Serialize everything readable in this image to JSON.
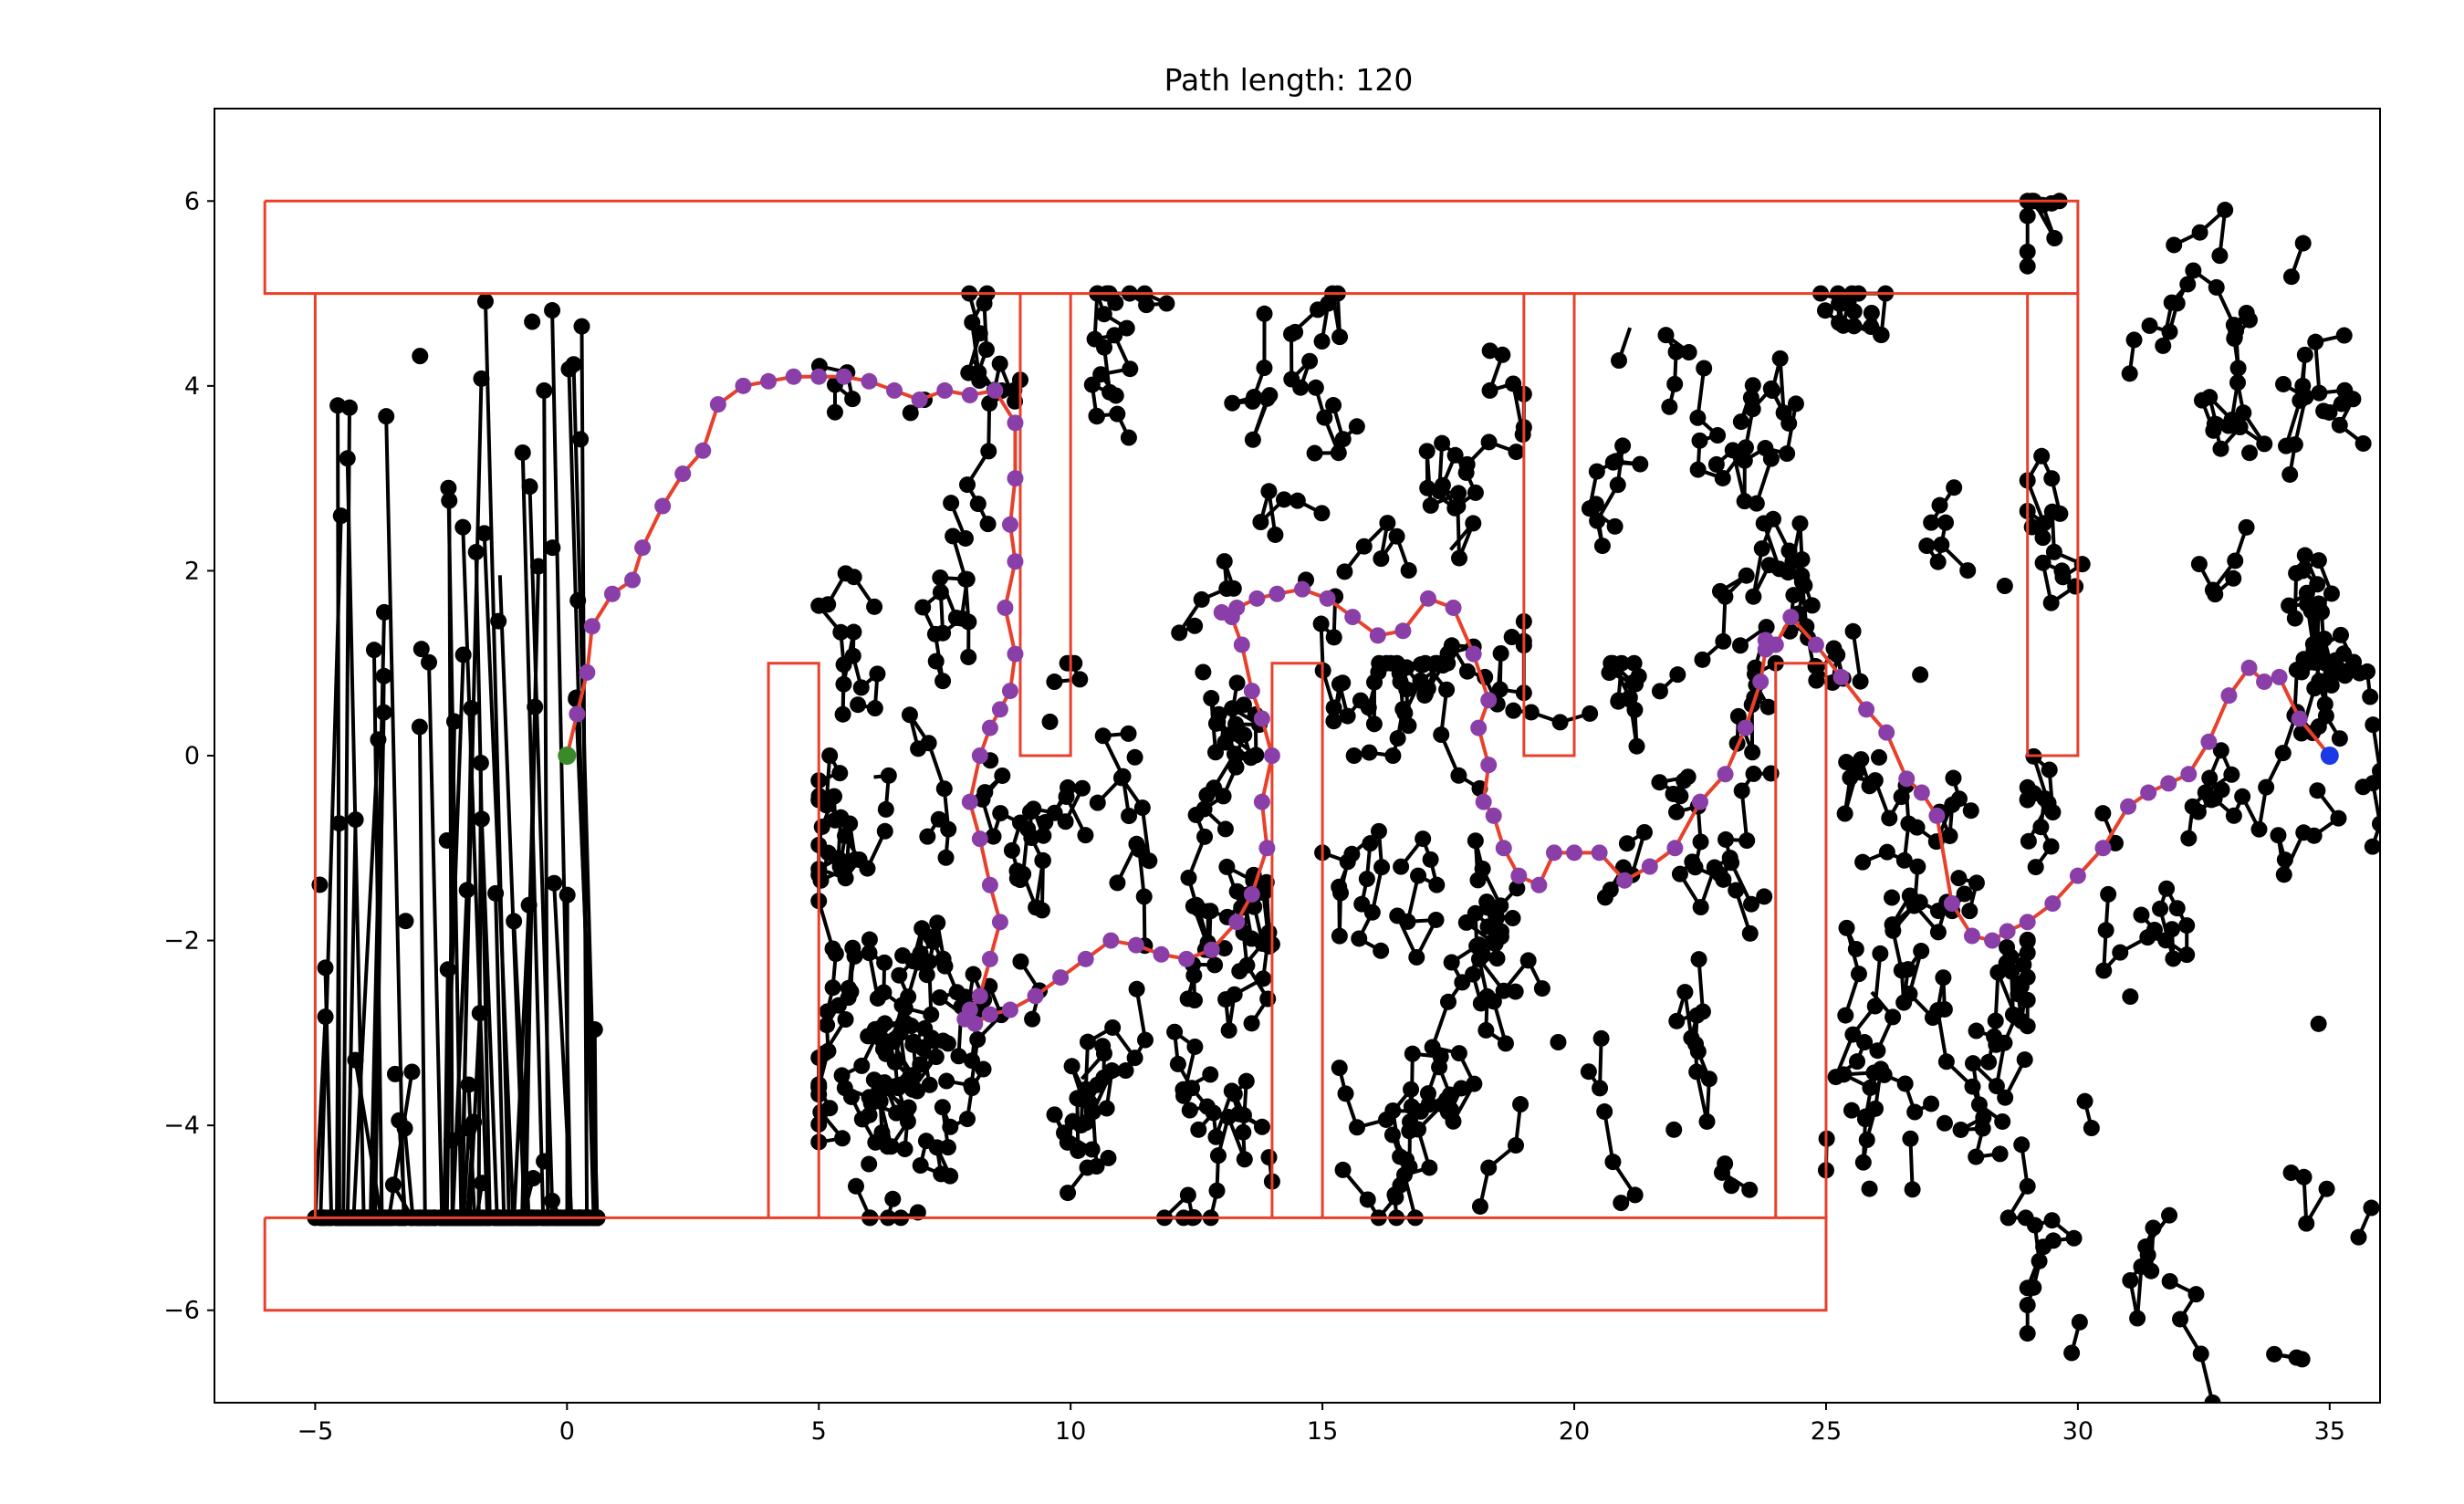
{
  "chart_data": {
    "type": "scatter",
    "title": "Path length: 120",
    "xlabel": "",
    "ylabel": "",
    "xlim": [
      -7,
      36
    ],
    "ylim": [
      -7,
      7
    ],
    "x_ticks": [
      -5,
      0,
      5,
      10,
      15,
      20,
      25,
      30,
      35
    ],
    "x_tick_labels": [
      "−5",
      "0",
      "5",
      "10",
      "15",
      "20",
      "25",
      "30",
      "35"
    ],
    "y_ticks": [
      -6,
      -4,
      -2,
      0,
      2,
      4,
      6
    ],
    "y_tick_labels": [
      "−6",
      "−4",
      "−2",
      "0",
      "2",
      "4",
      "6"
    ],
    "grid": false,
    "colors": {
      "walls": "#e8402b",
      "tree": "#000000",
      "path_line": "#e8402b",
      "path_nodes": "#8a3fa8",
      "start": "#3a8a2a",
      "goal": "#1a3ae8"
    },
    "start": [
      0,
      0
    ],
    "goal": [
      35,
      0
    ],
    "walls": [
      {
        "name": "top-bar",
        "x": [
          -6,
          30,
          30,
          -6,
          -6
        ],
        "y": [
          6,
          6,
          5,
          5,
          6
        ]
      },
      {
        "name": "bottom-bar",
        "x": [
          -6,
          25,
          25,
          -6,
          -6
        ],
        "y": [
          -5,
          -5,
          -6,
          -6,
          -5
        ]
      },
      {
        "name": "left-wall",
        "x": [
          -5,
          -5
        ],
        "y": [
          5,
          -5
        ]
      },
      {
        "name": "prong-1",
        "x": [
          9,
          9,
          10,
          10
        ],
        "y": [
          5,
          0,
          0,
          5
        ]
      },
      {
        "name": "prong-2",
        "x": [
          19,
          19,
          20,
          20
        ],
        "y": [
          5,
          0,
          0,
          5
        ]
      },
      {
        "name": "prong-3",
        "x": [
          29,
          29,
          30,
          30
        ],
        "y": [
          5,
          0,
          0,
          5
        ]
      },
      {
        "name": "post-1",
        "x": [
          4,
          4,
          5,
          5
        ],
        "y": [
          -5,
          1,
          1,
          -5
        ]
      },
      {
        "name": "post-2",
        "x": [
          14,
          14,
          15,
          15
        ],
        "y": [
          -5,
          1,
          1,
          -5
        ]
      },
      {
        "name": "post-3",
        "x": [
          24,
          24,
          25,
          25
        ],
        "y": [
          -5,
          1,
          1,
          -5
        ]
      }
    ],
    "path": {
      "x": [
        0,
        0.2,
        0.4,
        0.5,
        0.9,
        1.3,
        1.5,
        1.9,
        2.3,
        2.7,
        3.0,
        3.5,
        4.0,
        4.5,
        5.0,
        5.5,
        6.0,
        6.5,
        7.0,
        7.5,
        8.0,
        8.5,
        8.9,
        8.9,
        8.8,
        8.9,
        8.7,
        8.9,
        8.8,
        8.6,
        8.4,
        8.2,
        8.0,
        8.2,
        8.4,
        8.6,
        8.4,
        8.2,
        8.0,
        7.9,
        8.1,
        8.4,
        8.8,
        9.3,
        9.8,
        10.3,
        10.8,
        11.3,
        11.8,
        12.3,
        12.8,
        13.3,
        13.6,
        13.9,
        13.8,
        14.0,
        13.8,
        13.6,
        13.4,
        13.2,
        13.0,
        13.3,
        13.7,
        14.1,
        14.6,
        15.1,
        15.6,
        16.1,
        16.6,
        17.1,
        17.6,
        18.0,
        18.3,
        18.1,
        18.3,
        18.2,
        18.4,
        18.6,
        18.9,
        19.3,
        19.6,
        20.0,
        20.5,
        21.0,
        21.5,
        22.0,
        22.5,
        23.0,
        23.4,
        23.7,
        23.8,
        23.9,
        23.8,
        24.0,
        24.3,
        24.8,
        25.3,
        25.8,
        26.2,
        26.6,
        26.9,
        27.2,
        27.5,
        27.9,
        28.3,
        28.6,
        29.0,
        29.5,
        30.0,
        30.5,
        31.0,
        31.4,
        31.8,
        32.2,
        32.6,
        33.0,
        33.4,
        33.7,
        34.0,
        34.4,
        35.0
      ],
      "y": [
        0,
        0.45,
        0.9,
        1.4,
        1.75,
        1.9,
        2.25,
        2.7,
        3.05,
        3.3,
        3.8,
        4.0,
        4.05,
        4.1,
        4.1,
        4.1,
        4.05,
        3.95,
        3.85,
        3.95,
        3.9,
        3.95,
        3.6,
        3.0,
        2.5,
        2.1,
        1.6,
        1.1,
        0.7,
        0.5,
        0.3,
        0.0,
        -0.5,
        -0.9,
        -1.4,
        -1.8,
        -2.2,
        -2.6,
        -2.75,
        -2.85,
        -2.9,
        -2.8,
        -2.75,
        -2.6,
        -2.4,
        -2.2,
        -2.0,
        -2.05,
        -2.15,
        -2.2,
        -2.1,
        -1.8,
        -1.5,
        -1.0,
        -0.5,
        0.0,
        0.4,
        0.7,
        1.2,
        1.5,
        1.55,
        1.6,
        1.7,
        1.75,
        1.8,
        1.7,
        1.5,
        1.3,
        1.35,
        1.7,
        1.6,
        1.1,
        0.6,
        0.3,
        -0.1,
        -0.5,
        -0.65,
        -1.0,
        -1.3,
        -1.4,
        -1.05,
        -1.05,
        -1.05,
        -1.35,
        -1.2,
        -1.0,
        -0.5,
        -0.2,
        0.3,
        0.8,
        1.15,
        1.2,
        1.25,
        1.2,
        1.5,
        1.2,
        0.85,
        0.5,
        0.25,
        -0.25,
        -0.4,
        -0.65,
        -1.6,
        -1.95,
        -2.0,
        -1.9,
        -1.8,
        -1.6,
        -1.3,
        -1.0,
        -0.55,
        -0.4,
        -0.3,
        -0.2,
        0.15,
        0.65,
        0.95,
        0.8,
        0.85,
        0.4,
        0.0
      ]
    }
  }
}
